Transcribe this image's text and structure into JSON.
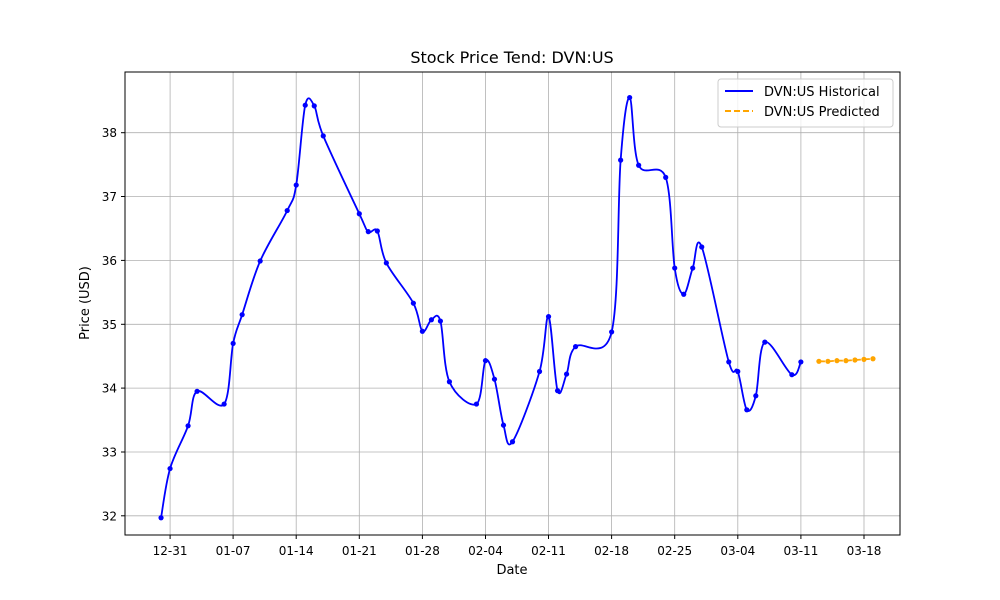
{
  "chart_data": {
    "type": "line",
    "title": "Stock Price Tend: DVN:US",
    "xlabel": "Date",
    "ylabel": "Price (USD)",
    "xlim": [
      "2024-12-26",
      "2025-03-22"
    ],
    "ylim": [
      31.7,
      38.95
    ],
    "x_ticks": [
      "2024-12-31",
      "2025-01-07",
      "2025-01-14",
      "2025-01-21",
      "2025-01-28",
      "2025-02-04",
      "2025-02-11",
      "2025-02-18",
      "2025-02-25",
      "2025-03-04",
      "2025-03-11",
      "2025-03-18"
    ],
    "x_tick_labels": [
      "12-31",
      "01-07",
      "01-14",
      "01-21",
      "01-28",
      "02-04",
      "02-11",
      "02-18",
      "02-25",
      "03-04",
      "03-11",
      "03-18"
    ],
    "y_ticks": [
      32,
      33,
      34,
      35,
      36,
      37,
      38
    ],
    "grid": true,
    "legend_position": "top-right",
    "series": [
      {
        "name": "DVN:US Historical",
        "color": "#0000ff",
        "style": "solid",
        "x": [
          "2024-12-30",
          "2024-12-31",
          "2025-01-02",
          "2025-01-03",
          "2025-01-06",
          "2025-01-07",
          "2025-01-08",
          "2025-01-10",
          "2025-01-13",
          "2025-01-14",
          "2025-01-15",
          "2025-01-16",
          "2025-01-17",
          "2025-01-21",
          "2025-01-22",
          "2025-01-23",
          "2025-01-24",
          "2025-01-27",
          "2025-01-28",
          "2025-01-29",
          "2025-01-30",
          "2025-01-31",
          "2025-02-03",
          "2025-02-04",
          "2025-02-05",
          "2025-02-06",
          "2025-02-07",
          "2025-02-10",
          "2025-02-11",
          "2025-02-12",
          "2025-02-13",
          "2025-02-14",
          "2025-02-18",
          "2025-02-19",
          "2025-02-20",
          "2025-02-21",
          "2025-02-24",
          "2025-02-25",
          "2025-02-26",
          "2025-02-27",
          "2025-02-28",
          "2025-03-03",
          "2025-03-04",
          "2025-03-05",
          "2025-03-06",
          "2025-03-07",
          "2025-03-10",
          "2025-03-11"
        ],
        "values": [
          31.97,
          32.74,
          33.41,
          33.95,
          33.75,
          34.7,
          35.15,
          35.99,
          36.78,
          37.18,
          38.43,
          38.42,
          37.95,
          36.73,
          36.45,
          36.46,
          35.96,
          35.33,
          34.89,
          35.07,
          35.05,
          34.1,
          33.75,
          34.43,
          34.14,
          33.42,
          33.16,
          34.26,
          35.12,
          33.96,
          34.22,
          34.65,
          34.88,
          37.57,
          38.55,
          37.49,
          37.3,
          35.88,
          35.47,
          35.88,
          36.21,
          34.41,
          34.26,
          33.66,
          33.88,
          34.72,
          34.21,
          34.41
        ]
      },
      {
        "name": "DVN:US Predicted",
        "color": "#ffa500",
        "style": "dashed",
        "x": [
          "2025-03-13",
          "2025-03-14",
          "2025-03-15",
          "2025-03-16",
          "2025-03-17",
          "2025-03-18",
          "2025-03-19"
        ],
        "values": [
          34.42,
          34.42,
          34.43,
          34.43,
          34.44,
          34.45,
          34.46
        ]
      }
    ]
  }
}
